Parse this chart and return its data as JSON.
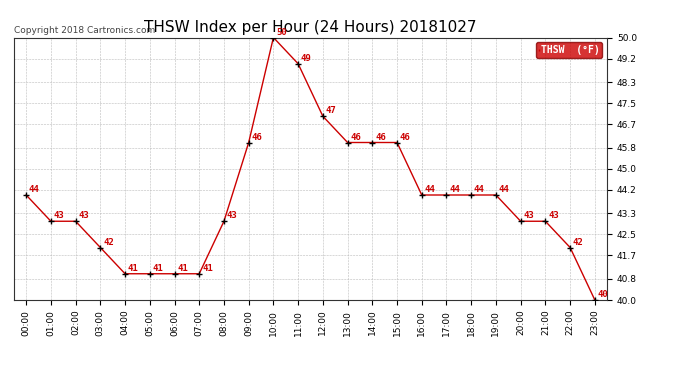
{
  "title": "THSW Index per Hour (24 Hours) 20181027",
  "copyright": "Copyright 2018 Cartronics.com",
  "legend_label": "THSW  (°F)",
  "hours": [
    0,
    1,
    2,
    3,
    4,
    5,
    6,
    7,
    8,
    9,
    10,
    11,
    12,
    13,
    14,
    15,
    16,
    17,
    18,
    19,
    20,
    21,
    22,
    23
  ],
  "values": [
    44,
    43,
    43,
    42,
    41,
    41,
    41,
    41,
    43,
    46,
    50,
    49,
    47,
    46,
    46,
    46,
    44,
    44,
    44,
    44,
    43,
    43,
    42,
    40
  ],
  "x_labels": [
    "00:00",
    "01:00",
    "02:00",
    "03:00",
    "04:00",
    "05:00",
    "06:00",
    "07:00",
    "08:00",
    "09:00",
    "10:00",
    "11:00",
    "12:00",
    "13:00",
    "14:00",
    "15:00",
    "16:00",
    "17:00",
    "18:00",
    "19:00",
    "20:00",
    "21:00",
    "22:00",
    "23:00"
  ],
  "ylim": [
    40.0,
    50.0
  ],
  "yticks": [
    40.0,
    40.8,
    41.7,
    42.5,
    43.3,
    44.2,
    45.0,
    45.8,
    46.7,
    47.5,
    48.3,
    49.2,
    50.0
  ],
  "line_color": "#cc0000",
  "marker_color": "#000000",
  "label_color": "#cc0000",
  "background_color": "#ffffff",
  "grid_color": "#bbbbbb",
  "legend_bg": "#cc0000",
  "legend_text_color": "#ffffff",
  "title_fontsize": 11,
  "label_fontsize": 6.5,
  "tick_fontsize": 6.5,
  "copyright_fontsize": 6.5
}
